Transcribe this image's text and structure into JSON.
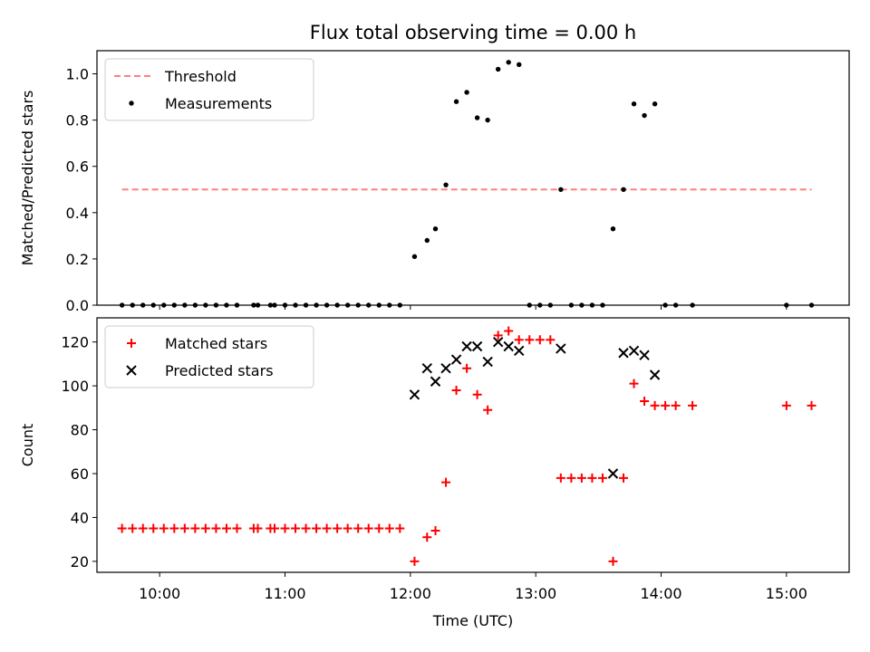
{
  "chart_data": [
    {
      "type": "scatter",
      "title": "Flux total observing time = 0.00 h",
      "xlabel": "",
      "ylabel": "Matched/Predicted stars",
      "xlim": [
        "09:30",
        "15:30"
      ],
      "ylim": [
        0,
        1.1
      ],
      "yticks": [
        "0.0",
        "0.2",
        "0.4",
        "0.6",
        "0.8",
        "1.0"
      ],
      "legend_position": "upper-left",
      "series": [
        {
          "name": "Threshold",
          "kind": "line",
          "style": "dashed",
          "color": "#ff7f7f",
          "points": [
            [
              "09:42",
              0.5
            ],
            [
              "15:12",
              0.5
            ]
          ]
        },
        {
          "name": "Measurements",
          "kind": "scatter",
          "marker": "dot",
          "color": "#000000",
          "points": [
            [
              "09:42",
              0
            ],
            [
              "09:47",
              0
            ],
            [
              "09:52",
              0
            ],
            [
              "09:57",
              0
            ],
            [
              "10:02",
              0
            ],
            [
              "10:07",
              0
            ],
            [
              "10:12",
              0
            ],
            [
              "10:17",
              0
            ],
            [
              "10:22",
              0
            ],
            [
              "10:27",
              0
            ],
            [
              "10:32",
              0
            ],
            [
              "10:37",
              0
            ],
            [
              "10:45",
              0
            ],
            [
              "10:47",
              0
            ],
            [
              "10:53",
              0
            ],
            [
              "10:55",
              0
            ],
            [
              "11:00",
              0
            ],
            [
              "11:05",
              0
            ],
            [
              "11:10",
              0
            ],
            [
              "11:15",
              0
            ],
            [
              "11:20",
              0
            ],
            [
              "11:25",
              0
            ],
            [
              "11:30",
              0
            ],
            [
              "11:35",
              0
            ],
            [
              "11:40",
              0
            ],
            [
              "11:45",
              0
            ],
            [
              "11:50",
              0
            ],
            [
              "11:55",
              0
            ],
            [
              "12:02",
              0.21
            ],
            [
              "12:08",
              0.28
            ],
            [
              "12:12",
              0.33
            ],
            [
              "12:17",
              0.52
            ],
            [
              "12:22",
              0.88
            ],
            [
              "12:27",
              0.92
            ],
            [
              "12:32",
              0.81
            ],
            [
              "12:37",
              0.8
            ],
            [
              "12:42",
              1.02
            ],
            [
              "12:47",
              1.05
            ],
            [
              "12:52",
              1.04
            ],
            [
              "12:57",
              0
            ],
            [
              "13:02",
              0
            ],
            [
              "13:07",
              0
            ],
            [
              "13:12",
              0.5
            ],
            [
              "13:17",
              0
            ],
            [
              "13:22",
              0
            ],
            [
              "13:27",
              0
            ],
            [
              "13:32",
              0
            ],
            [
              "13:37",
              0.33
            ],
            [
              "13:42",
              0.5
            ],
            [
              "13:47",
              0.87
            ],
            [
              "13:52",
              0.82
            ],
            [
              "13:57",
              0.87
            ],
            [
              "14:02",
              0
            ],
            [
              "14:07",
              0
            ],
            [
              "14:15",
              0
            ],
            [
              "15:00",
              0
            ],
            [
              "15:12",
              0
            ]
          ]
        }
      ]
    },
    {
      "type": "scatter",
      "title": "",
      "xlabel": "Time (UTC)",
      "ylabel": "Count",
      "xlim": [
        "09:30",
        "15:30"
      ],
      "ylim": [
        15,
        131
      ],
      "yticks": [
        "20",
        "40",
        "60",
        "80",
        "100",
        "120"
      ],
      "xticks": [
        "10:00",
        "11:00",
        "12:00",
        "13:00",
        "14:00",
        "15:00"
      ],
      "legend_position": "upper-left",
      "series": [
        {
          "name": "Matched stars",
          "kind": "scatter",
          "marker": "plus",
          "color": "#ff0000",
          "points": [
            [
              "09:42",
              35
            ],
            [
              "09:47",
              35
            ],
            [
              "09:52",
              35
            ],
            [
              "09:57",
              35
            ],
            [
              "10:02",
              35
            ],
            [
              "10:07",
              35
            ],
            [
              "10:12",
              35
            ],
            [
              "10:17",
              35
            ],
            [
              "10:22",
              35
            ],
            [
              "10:27",
              35
            ],
            [
              "10:32",
              35
            ],
            [
              "10:37",
              35
            ],
            [
              "10:45",
              35
            ],
            [
              "10:47",
              35
            ],
            [
              "10:53",
              35
            ],
            [
              "10:55",
              35
            ],
            [
              "11:00",
              35
            ],
            [
              "11:05",
              35
            ],
            [
              "11:10",
              35
            ],
            [
              "11:15",
              35
            ],
            [
              "11:20",
              35
            ],
            [
              "11:25",
              35
            ],
            [
              "11:30",
              35
            ],
            [
              "11:35",
              35
            ],
            [
              "11:40",
              35
            ],
            [
              "11:45",
              35
            ],
            [
              "11:50",
              35
            ],
            [
              "11:55",
              35
            ],
            [
              "12:02",
              20
            ],
            [
              "12:08",
              31
            ],
            [
              "12:12",
              34
            ],
            [
              "12:17",
              56
            ],
            [
              "12:22",
              98
            ],
            [
              "12:27",
              108
            ],
            [
              "12:32",
              96
            ],
            [
              "12:37",
              89
            ],
            [
              "12:42",
              123
            ],
            [
              "12:47",
              125
            ],
            [
              "12:52",
              121
            ],
            [
              "12:57",
              121
            ],
            [
              "13:02",
              121
            ],
            [
              "13:07",
              121
            ],
            [
              "13:12",
              58
            ],
            [
              "13:17",
              58
            ],
            [
              "13:22",
              58
            ],
            [
              "13:27",
              58
            ],
            [
              "13:32",
              58
            ],
            [
              "13:37",
              20
            ],
            [
              "13:42",
              58
            ],
            [
              "13:47",
              101
            ],
            [
              "13:52",
              93
            ],
            [
              "13:57",
              91
            ],
            [
              "14:02",
              91
            ],
            [
              "14:07",
              91
            ],
            [
              "14:15",
              91
            ],
            [
              "15:00",
              91
            ],
            [
              "15:12",
              91
            ]
          ]
        },
        {
          "name": "Predicted stars",
          "kind": "scatter",
          "marker": "x",
          "color": "#000000",
          "points": [
            [
              "12:02",
              96
            ],
            [
              "12:08",
              108
            ],
            [
              "12:12",
              102
            ],
            [
              "12:17",
              108
            ],
            [
              "12:22",
              112
            ],
            [
              "12:27",
              118
            ],
            [
              "12:32",
              118
            ],
            [
              "12:37",
              111
            ],
            [
              "12:42",
              120
            ],
            [
              "12:47",
              118
            ],
            [
              "12:52",
              116
            ],
            [
              "13:12",
              117
            ],
            [
              "13:37",
              60
            ],
            [
              "13:42",
              115
            ],
            [
              "13:47",
              116
            ],
            [
              "13:52",
              114
            ],
            [
              "13:57",
              105
            ]
          ]
        }
      ]
    }
  ]
}
